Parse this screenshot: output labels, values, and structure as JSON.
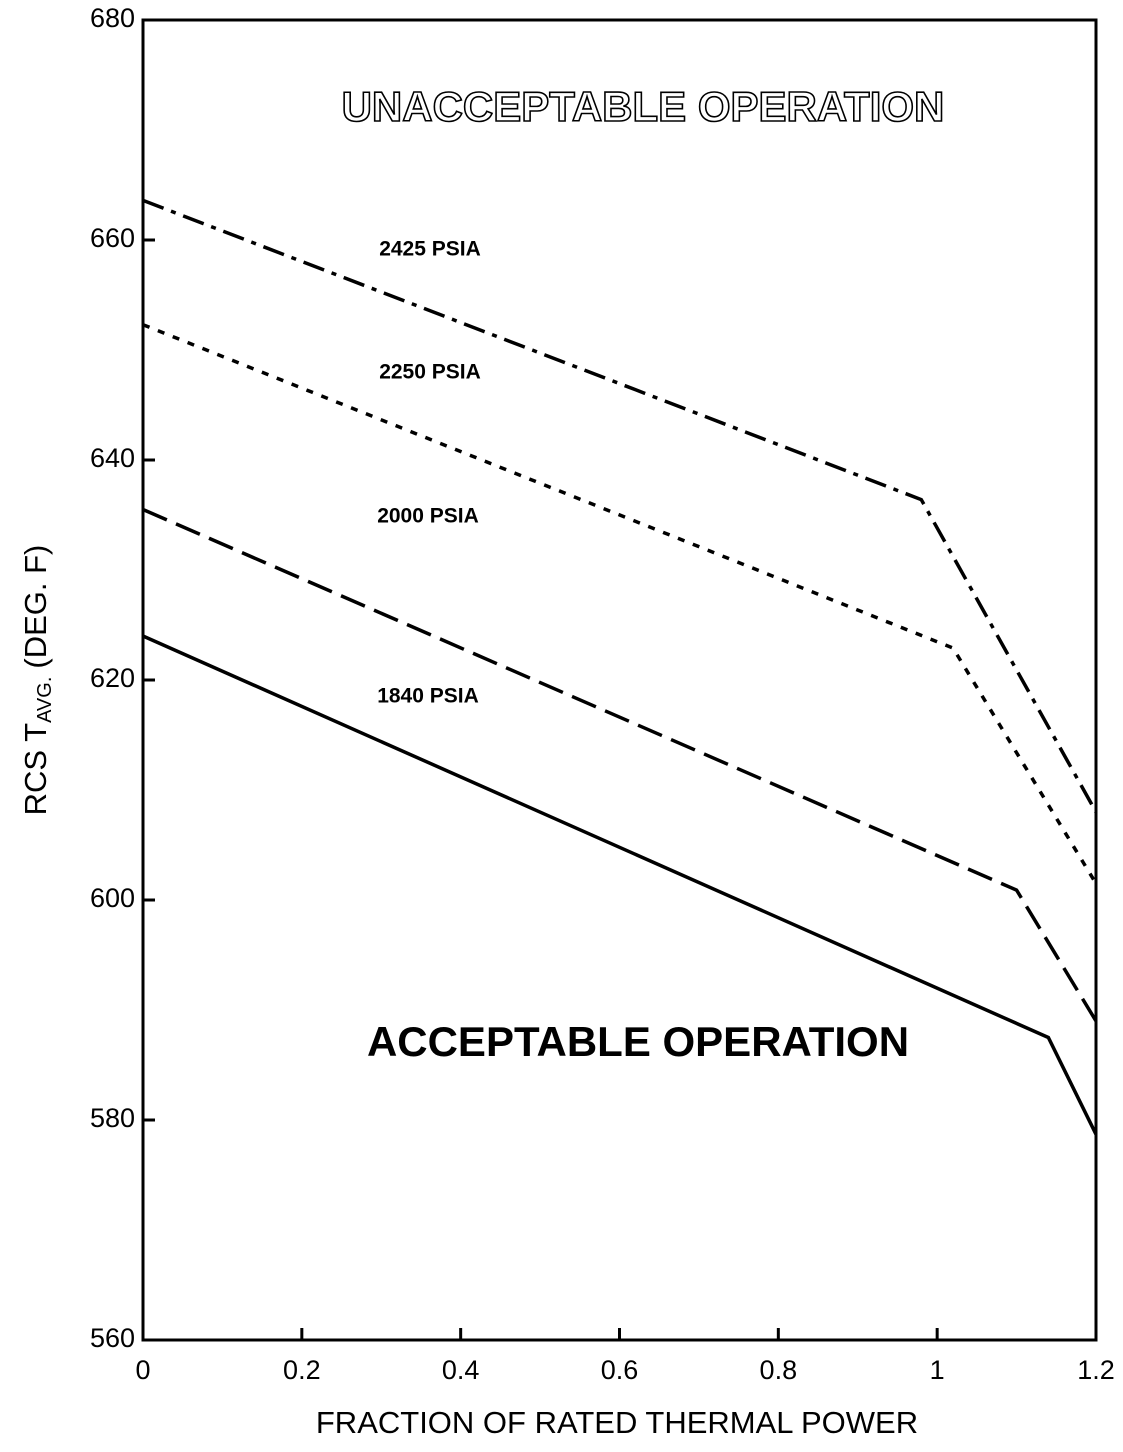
{
  "chart_data": {
    "type": "line",
    "xlabel": "FRACTION OF RATED THERMAL POWER",
    "ylabel_parts": [
      "RCS T",
      "AVG.",
      "(DEG. F)"
    ],
    "annotations": [
      "UNACCEPTABLE OPERATION",
      "ACCEPTABLE OPERATION"
    ],
    "xlim": [
      0,
      1.2
    ],
    "ylim": [
      560,
      680
    ],
    "xticks": [
      0,
      0.2,
      0.4,
      0.6,
      0.8,
      1,
      1.2
    ],
    "yticks": [
      560,
      580,
      600,
      620,
      640,
      660,
      680
    ],
    "grid": false,
    "series": [
      {
        "name": "2425 PSIA",
        "color": "#000000",
        "style": "dashdot",
        "x": [
          0,
          0.98,
          1.2
        ],
        "values": [
          663.6,
          636.4,
          608
        ]
      },
      {
        "name": "2250 PSIA",
        "color": "#000000",
        "style": "dot",
        "x": [
          0,
          1.02,
          1.2
        ],
        "values": [
          652.3,
          622.9,
          601.5
        ]
      },
      {
        "name": "2000 PSIA",
        "color": "#000000",
        "style": "dash",
        "x": [
          0,
          1.1,
          1.2
        ],
        "values": [
          635.5,
          600.9,
          589
        ]
      },
      {
        "name": "1840 PSIA",
        "color": "#000000",
        "style": "solid",
        "x": [
          0,
          1.14,
          1.2
        ],
        "values": [
          624,
          587.5,
          578.7
        ]
      }
    ]
  }
}
